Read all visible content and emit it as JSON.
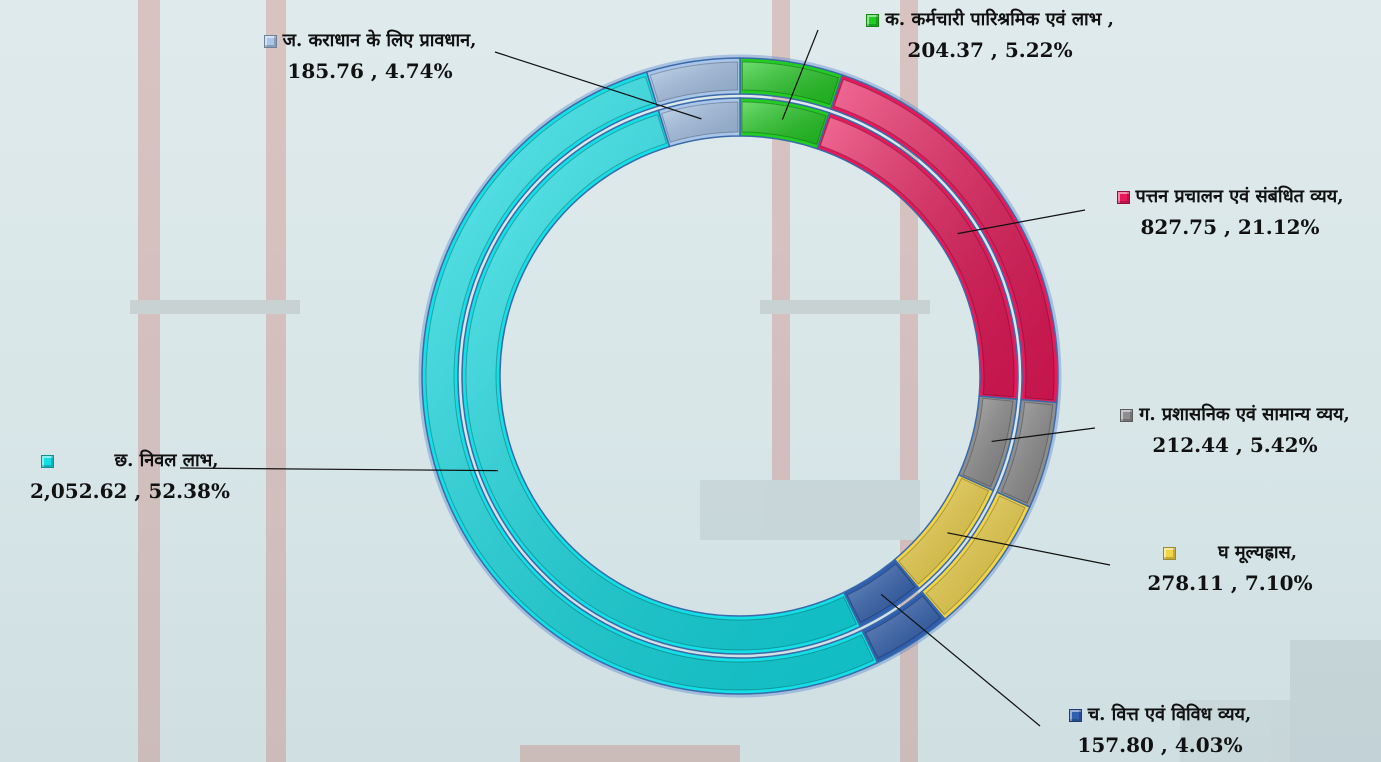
{
  "chart_data": {
    "type": "pie",
    "style": "double-ring doughnut with callout labels",
    "slices": [
      {
        "label": "क. कर्मचारी पारिश्रमिक एवं लाभ ,",
        "value_text": "204.37 , 5.22%",
        "value": 204.37,
        "percent": 5.22,
        "color": "#22cc22"
      },
      {
        "label": "पत्तन प्रचालन एवं संबंधित व्यय,",
        "value_text": "827.75 , 21.12%",
        "value": 827.75,
        "percent": 21.12,
        "color": "#e8185a"
      },
      {
        "label": "ग. प्रशासनिक एवं सामान्य व्यय,",
        "value_text": "212.44 , 5.42%",
        "value": 212.44,
        "percent": 5.42,
        "color": "#8e8e8e"
      },
      {
        "label": "घ मूल्यह्रास,",
        "value_text": "278.11 , 7.10%",
        "value": 278.11,
        "percent": 7.1,
        "color": "#f2d447"
      },
      {
        "label": "च. वित्त एवं विविध व्यय,",
        "value_text": "157.80 , 4.03%",
        "value": 157.8,
        "percent": 4.03,
        "color": "#2f5fb0"
      },
      {
        "label": "छ. निवल लाभ,",
        "value_text": "2,052.62 , 52.38%",
        "value": 2052.62,
        "percent": 52.38,
        "color": "#12dfe6"
      },
      {
        "label": "ज. कराधान के लिए प्रावधान,",
        "value_text": "185.76 , 4.74%",
        "value": 185.76,
        "percent": 4.74,
        "color": "#a9c6ea"
      }
    ]
  }
}
